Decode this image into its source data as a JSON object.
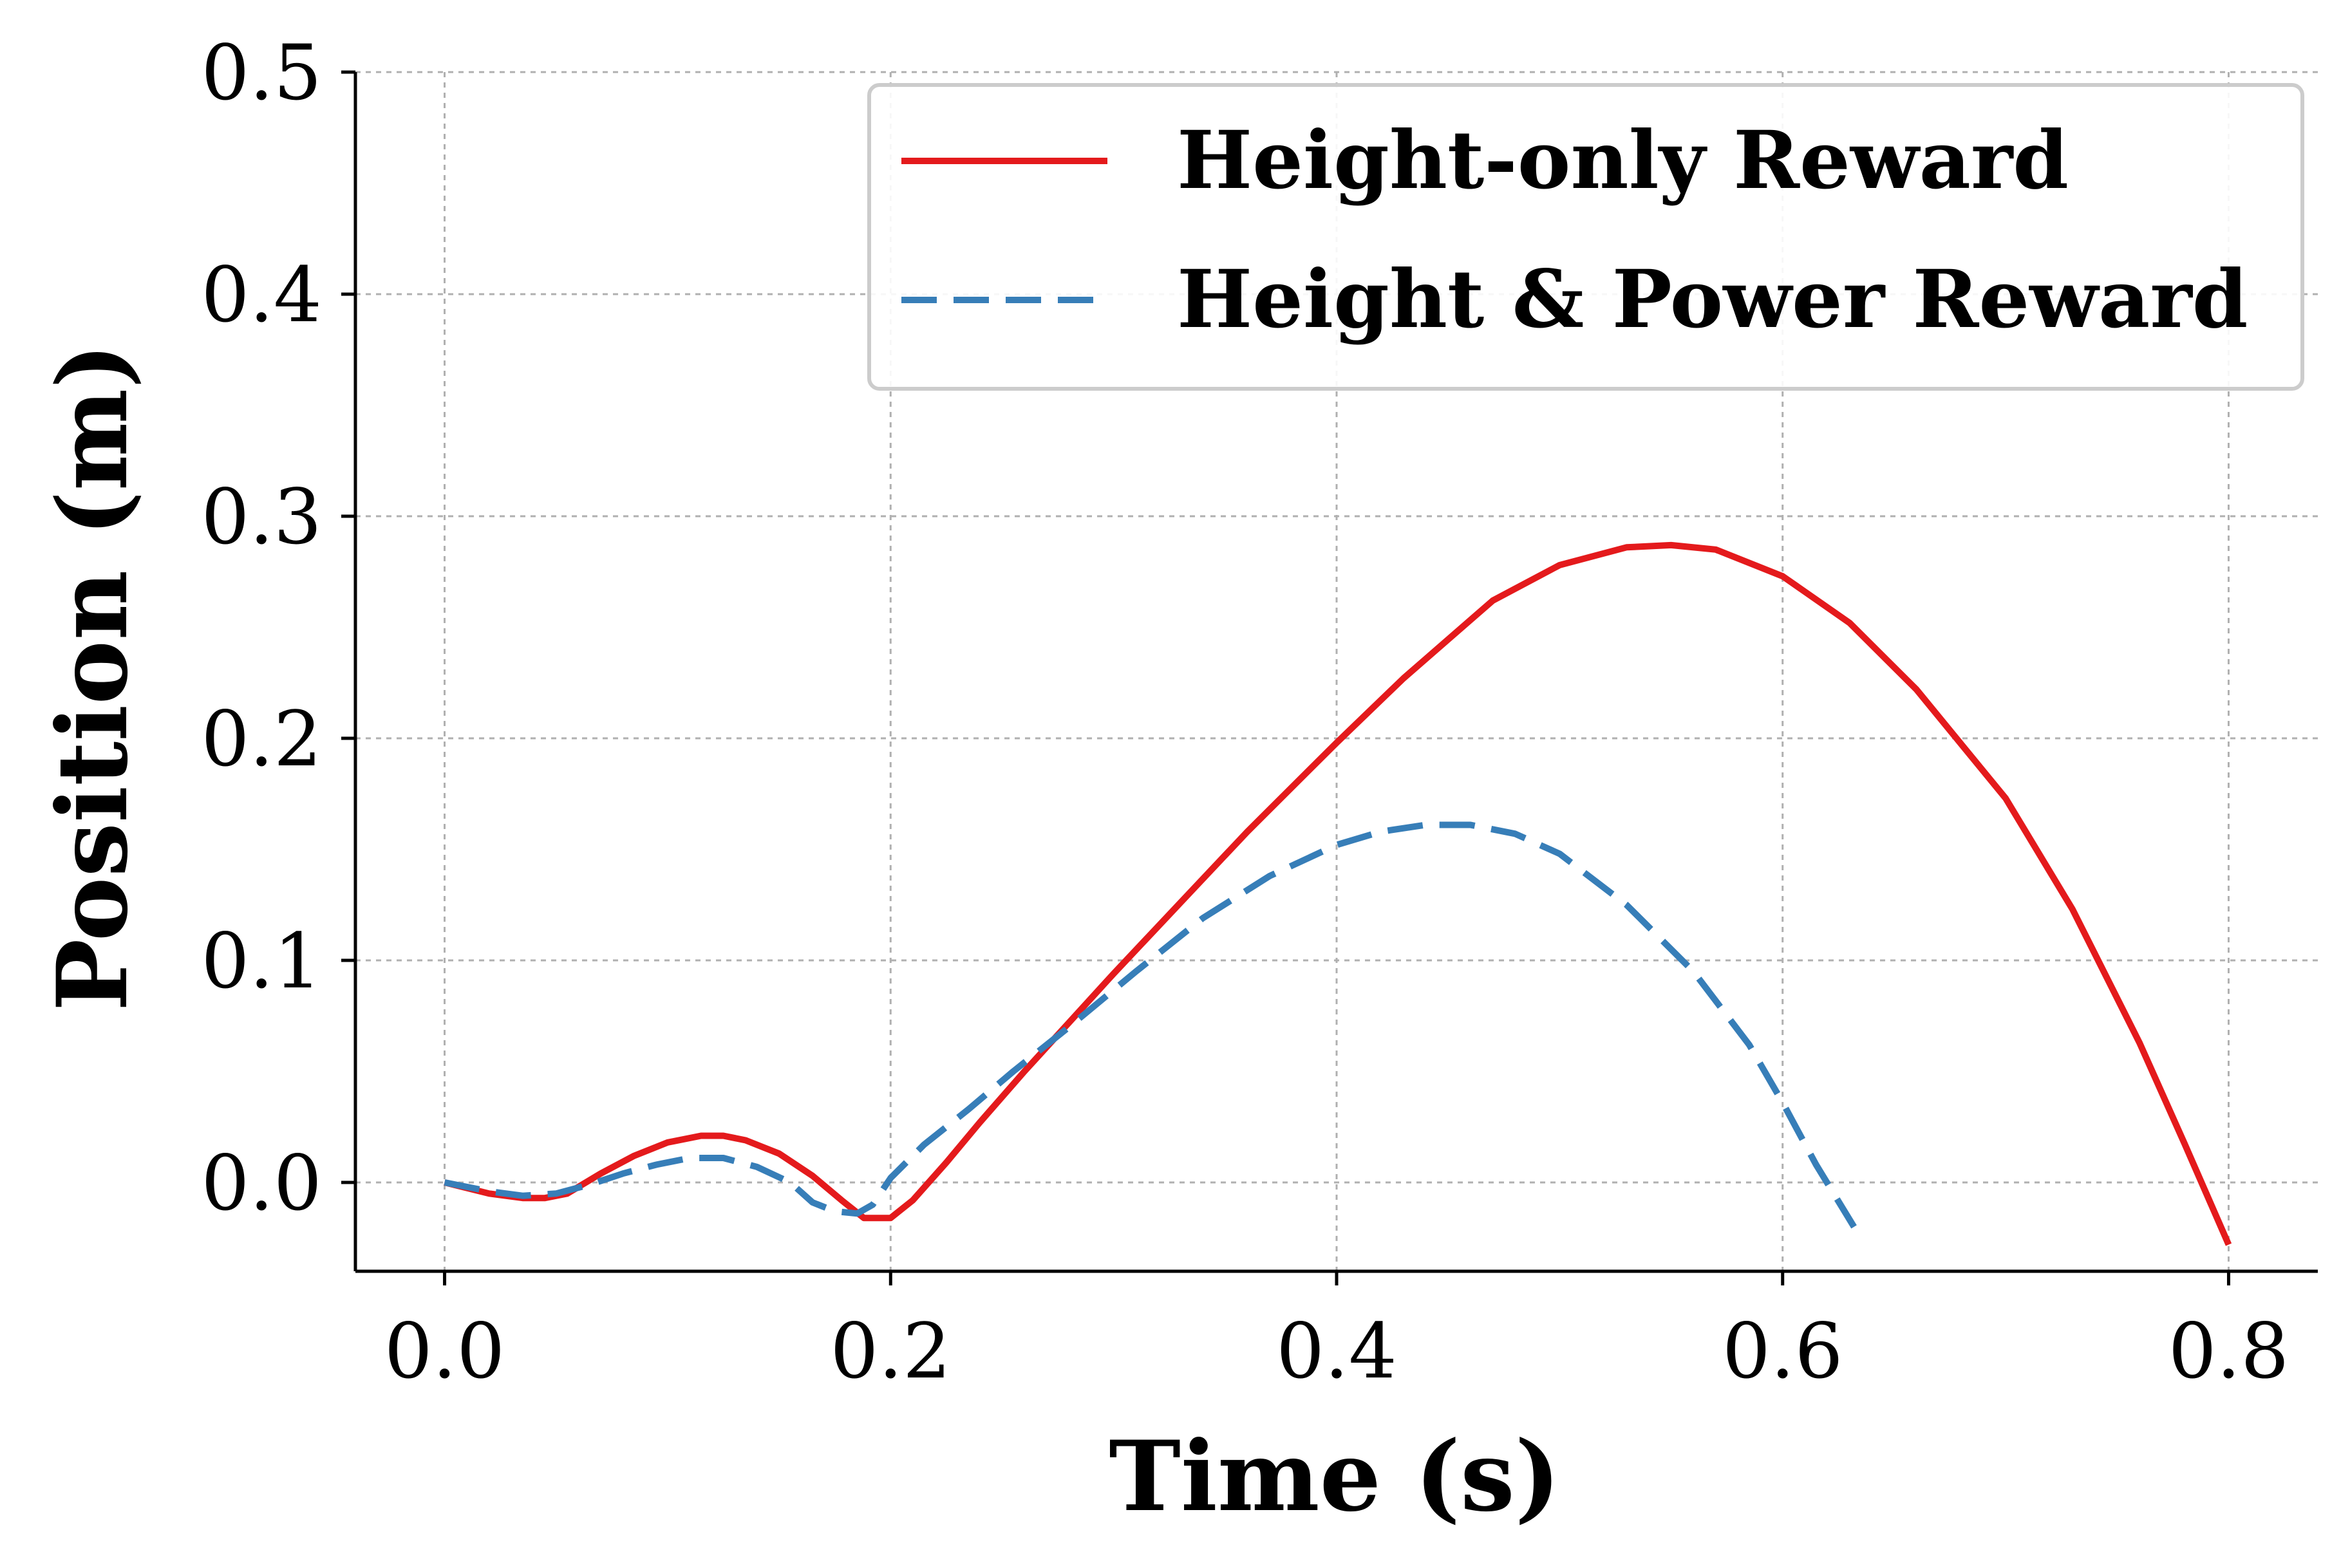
{
  "chart_data": {
    "type": "line",
    "title": "",
    "xlabel": "Time (s)",
    "ylabel": "Position (m)",
    "xlim": [
      -0.04,
      0.84
    ],
    "ylim": [
      -0.04,
      0.5
    ],
    "x_ticks": [
      0.0,
      0.2,
      0.4,
      0.6,
      0.8
    ],
    "x_tick_labels": [
      "0.0",
      "0.2",
      "0.4",
      "0.6",
      "0.8"
    ],
    "y_ticks": [
      0.0,
      0.1,
      0.2,
      0.3,
      0.4,
      0.5
    ],
    "y_tick_labels": [
      "0.0",
      "0.1",
      "0.2",
      "0.3",
      "0.4",
      "0.5"
    ],
    "grid": true,
    "legend_position": "top-right",
    "series": [
      {
        "name": "Height-only Reward",
        "color": "#e41a1c",
        "style": "solid",
        "x": [
          0.0,
          0.02,
          0.035,
          0.045,
          0.055,
          0.07,
          0.085,
          0.1,
          0.115,
          0.125,
          0.135,
          0.15,
          0.165,
          0.178,
          0.188,
          0.2,
          0.21,
          0.225,
          0.24,
          0.26,
          0.28,
          0.3,
          0.33,
          0.36,
          0.4,
          0.43,
          0.47,
          0.5,
          0.53,
          0.55,
          0.57,
          0.6,
          0.63,
          0.66,
          0.7,
          0.73,
          0.76,
          0.78,
          0.8
        ],
        "y": [
          0.0,
          -0.005,
          -0.007,
          -0.007,
          -0.005,
          0.004,
          0.012,
          0.018,
          0.021,
          0.021,
          0.019,
          0.013,
          0.003,
          -0.008,
          -0.016,
          -0.016,
          -0.008,
          0.009,
          0.027,
          0.05,
          0.072,
          0.094,
          0.126,
          0.158,
          0.198,
          0.227,
          0.262,
          0.278,
          0.286,
          0.287,
          0.285,
          0.273,
          0.252,
          0.222,
          0.173,
          0.123,
          0.063,
          0.018,
          -0.028
        ]
      },
      {
        "name": "Height & Power Reward",
        "color": "#377eb8",
        "style": "dashed",
        "x": [
          0.0,
          0.02,
          0.035,
          0.05,
          0.065,
          0.08,
          0.095,
          0.11,
          0.125,
          0.14,
          0.155,
          0.165,
          0.175,
          0.185,
          0.192,
          0.2,
          0.215,
          0.235,
          0.255,
          0.28,
          0.31,
          0.34,
          0.37,
          0.4,
          0.42,
          0.44,
          0.46,
          0.48,
          0.5,
          0.53,
          0.56,
          0.585,
          0.6,
          0.615,
          0.632
        ],
        "y": [
          0.0,
          -0.004,
          -0.006,
          -0.005,
          -0.001,
          0.004,
          0.008,
          0.011,
          0.011,
          0.007,
          0.0,
          -0.009,
          -0.013,
          -0.014,
          -0.01,
          0.002,
          0.017,
          0.033,
          0.05,
          0.07,
          0.095,
          0.119,
          0.138,
          0.152,
          0.158,
          0.161,
          0.161,
          0.157,
          0.148,
          0.125,
          0.095,
          0.062,
          0.036,
          0.008,
          -0.02
        ]
      }
    ]
  }
}
